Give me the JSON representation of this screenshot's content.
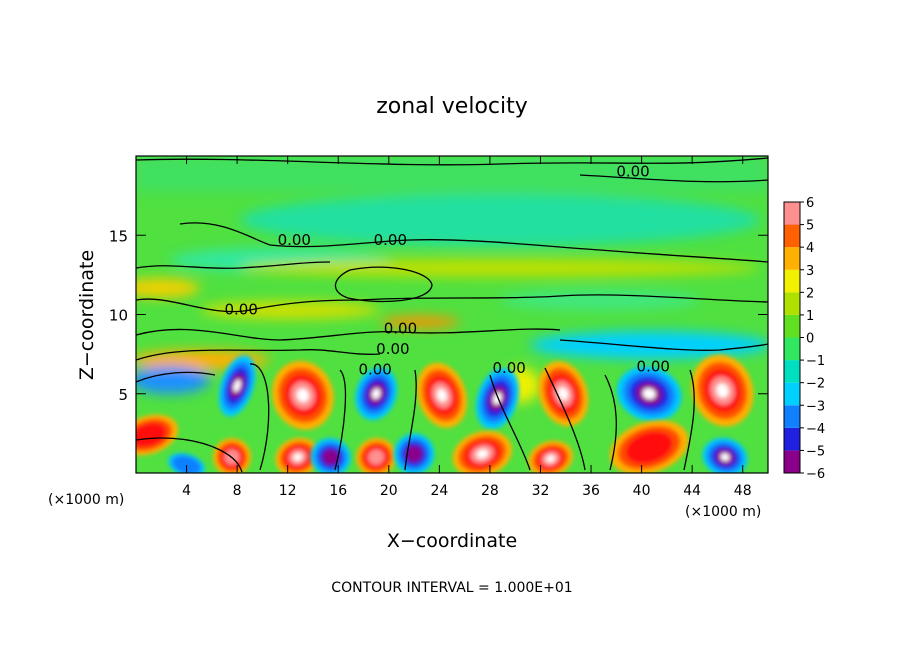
{
  "chart_data": {
    "type": "heatmap",
    "title": "zonal velocity",
    "xlabel": "X−coordinate",
    "ylabel": "Z−coordinate",
    "x_unit_left": "(×1000 m)",
    "x_unit_right": "(×1000 m)",
    "footer": "CONTOUR INTERVAL = 1.000E+01",
    "xlim": [
      0,
      50
    ],
    "ylim": [
      0,
      20
    ],
    "x_ticks": [
      4,
      8,
      12,
      16,
      20,
      24,
      28,
      32,
      36,
      40,
      44,
      48
    ],
    "x_tick_labels": [
      "4",
      "8",
      "12",
      "16",
      "20",
      "24",
      "28",
      "32",
      "36",
      "40",
      "44",
      "48"
    ],
    "y_ticks": [
      5,
      10,
      15
    ],
    "y_tick_labels": [
      "5",
      "10",
      "15"
    ],
    "colorbar": {
      "min": -6,
      "max": 6,
      "ticks": [
        6,
        5,
        4,
        3,
        2,
        1,
        0,
        -1,
        -2,
        -3,
        -4,
        -5,
        -6
      ],
      "tick_labels": [
        "6",
        "5",
        "4",
        "3",
        "2",
        "1",
        "0",
        "−1",
        "−2",
        "−3",
        "−4",
        "−5",
        "−6"
      ],
      "colors": [
        "#8a008a",
        "#2020e0",
        "#1080ff",
        "#00d0ff",
        "#00e0c0",
        "#30e860",
        "#60e020",
        "#b0e000",
        "#f0f000",
        "#ffb000",
        "#ff6000",
        "#ff1010",
        "#ff9090"
      ]
    },
    "contour_labels": [
      {
        "text": "0.00",
        "x": 38,
        "y": 18.7
      },
      {
        "text": "0.00",
        "x": 11.2,
        "y": 14.4
      },
      {
        "text": "0.00",
        "x": 18.8,
        "y": 14.4
      },
      {
        "text": "0.00",
        "x": 7.0,
        "y": 10.0
      },
      {
        "text": "0.00",
        "x": 19.6,
        "y": 8.8
      },
      {
        "text": "0.00",
        "x": 19.0,
        "y": 7.5
      },
      {
        "text": "0.00",
        "x": 17.6,
        "y": 6.2
      },
      {
        "text": "0.00",
        "x": 28.2,
        "y": 6.3
      },
      {
        "text": "0.00",
        "x": 39.6,
        "y": 6.4
      }
    ],
    "extremes": [
      {
        "x": 8.0,
        "z": 5.5,
        "v": -6,
        "rx": 1.3,
        "rz": 2.0
      },
      {
        "x": 13.2,
        "z": 4.9,
        "v": 6,
        "rx": 2.4,
        "rz": 2.2
      },
      {
        "x": 19.0,
        "z": 5.0,
        "v": -6,
        "rx": 1.6,
        "rz": 1.7
      },
      {
        "x": 24.2,
        "z": 4.9,
        "v": 6,
        "rx": 1.9,
        "rz": 2.1
      },
      {
        "x": 28.6,
        "z": 4.7,
        "v": -6,
        "rx": 1.6,
        "rz": 2.0
      },
      {
        "x": 33.8,
        "z": 5.0,
        "v": 6,
        "rx": 1.9,
        "rz": 2.1
      },
      {
        "x": 40.6,
        "z": 5.0,
        "v": -6,
        "rx": 2.6,
        "rz": 1.7
      },
      {
        "x": 46.4,
        "z": 5.2,
        "v": 6,
        "rx": 2.4,
        "rz": 2.3
      },
      {
        "x": 7.6,
        "z": 1.0,
        "v": 5,
        "rx": 1.5,
        "rz": 1.2
      },
      {
        "x": 12.8,
        "z": 1.0,
        "v": 6,
        "rx": 1.8,
        "rz": 1.2
      },
      {
        "x": 15.4,
        "z": 1.0,
        "v": -5,
        "rx": 1.6,
        "rz": 1.2
      },
      {
        "x": 19.0,
        "z": 1.0,
        "v": 5,
        "rx": 1.6,
        "rz": 1.2
      },
      {
        "x": 22.0,
        "z": 1.2,
        "v": -5,
        "rx": 1.6,
        "rz": 1.3
      },
      {
        "x": 27.4,
        "z": 1.2,
        "v": 6,
        "rx": 2.4,
        "rz": 1.4
      },
      {
        "x": 32.8,
        "z": 0.9,
        "v": 6,
        "rx": 1.8,
        "rz": 1.1
      },
      {
        "x": 40.6,
        "z": 1.6,
        "v": 4,
        "rx": 3.2,
        "rz": 1.6
      },
      {
        "x": 46.6,
        "z": 1.0,
        "v": -6,
        "rx": 1.8,
        "rz": 1.2
      },
      {
        "x": 1.0,
        "z": 2.4,
        "v": 4,
        "rx": 2.4,
        "rz": 1.2
      },
      {
        "x": 4.0,
        "z": 0.5,
        "v": -3,
        "rx": 1.5,
        "rz": 0.7
      }
    ]
  }
}
